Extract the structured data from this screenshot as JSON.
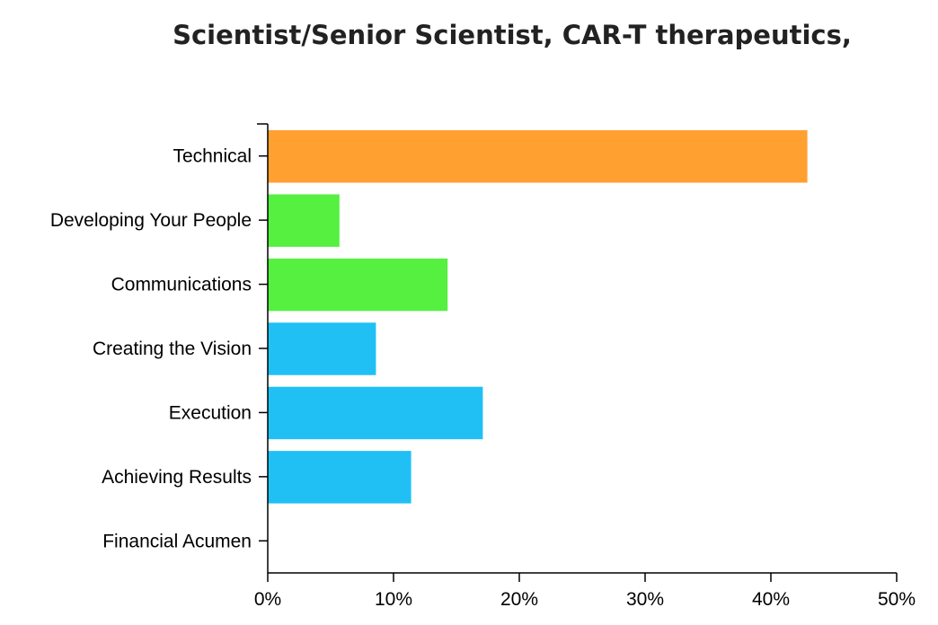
{
  "chart_data": {
    "type": "bar",
    "orientation": "horizontal",
    "title": "Scientist/Senior Scientist, CAR-T therapeutics,",
    "xlabel": "",
    "ylabel": "",
    "categories": [
      "Technical",
      "Developing Your People",
      "Communications",
      "Creating the Vision",
      "Execution",
      "Achieving Results",
      "Financial Acumen"
    ],
    "values": [
      42.9,
      5.7,
      14.3,
      8.6,
      17.1,
      11.4,
      0
    ],
    "bar_colors": [
      "#ffa030",
      "#55f040",
      "#55f040",
      "#20c0f5",
      "#20c0f5",
      "#20c0f5",
      "#20c0f5"
    ],
    "xlim": [
      0,
      50
    ],
    "x_ticks": [
      0,
      10,
      20,
      30,
      40,
      50
    ],
    "x_tick_labels": [
      "0%",
      "10%",
      "20%",
      "30%",
      "40%",
      "50%"
    ],
    "grid": false,
    "legend": "none"
  }
}
